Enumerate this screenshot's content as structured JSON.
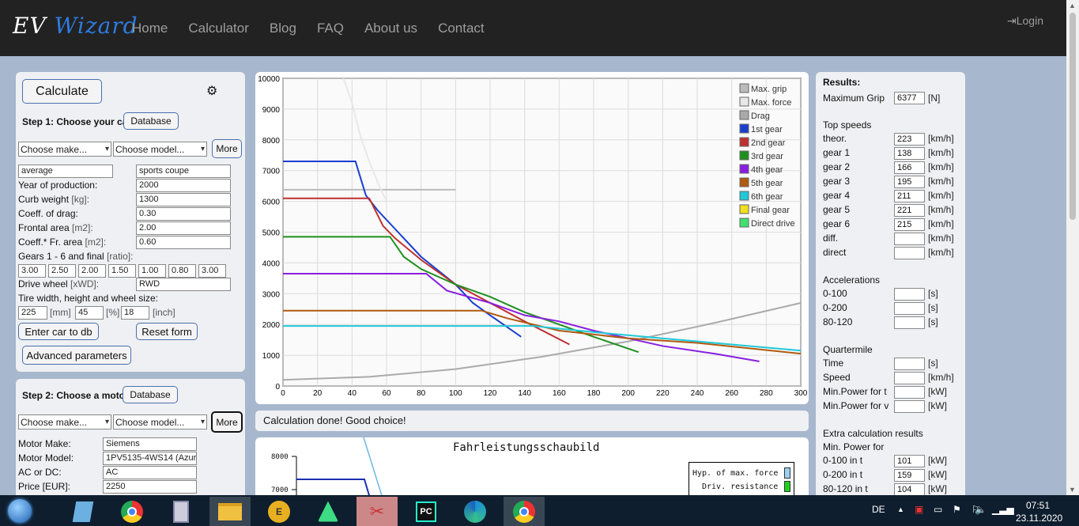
{
  "nav": {
    "brand_a": "EV",
    "brand_b": "Wizard",
    "items": [
      "Home",
      "Calculator",
      "Blog",
      "FAQ",
      "About us",
      "Contact"
    ],
    "login": "Login"
  },
  "car": {
    "calculate": "Calculate",
    "step1": "Step 1: Choose your car!",
    "database": "Database",
    "make_placeholder": "Choose make...",
    "model_placeholder": "Choose model...",
    "more": "More",
    "field_a": "average",
    "field_b": "sports coupe",
    "rows": [
      {
        "label": "Year of production:",
        "unit": "",
        "value": "2000"
      },
      {
        "label": "Curb weight ",
        "unit": "[kg]:",
        "value": "1300"
      },
      {
        "label": "Coeff. of drag:",
        "unit": "",
        "value": "0.30"
      },
      {
        "label": "Frontal area ",
        "unit": "[m2]:",
        "value": "2.00"
      },
      {
        "label": "Coeff.* Fr. area ",
        "unit": "[m2]:",
        "value": "0.60"
      }
    ],
    "gears_label": "Gears 1 - 6 and final ",
    "gears_unit": "[ratio]:",
    "gears": [
      "3.00",
      "2.50",
      "2.00",
      "1.50",
      "1.00",
      "0.80",
      "3.00"
    ],
    "drive_label": "Drive wheel ",
    "drive_unit": "[xWD]:",
    "drive": "RWD",
    "tire_label": "Tire width, height and wheel size:",
    "tire_w": "225",
    "tire_w_unit": "[mm]",
    "tire_h": "45",
    "tire_h_unit": "[%]",
    "tire_r": "18",
    "tire_r_unit": "[inch]",
    "enter_db": "Enter car to db",
    "reset": "Reset form",
    "advanced": "Advanced parameters"
  },
  "motor": {
    "step2": "Step 2: Choose a motor!",
    "database": "Database",
    "make_placeholder": "Choose make...",
    "model_placeholder": "Choose model...",
    "more": "More",
    "rows": [
      {
        "label": "Motor Make:",
        "value": "Siemens"
      },
      {
        "label": "Motor Model:",
        "value": "1PV5135-4WS14 (Azur"
      },
      {
        "label": "AC or DC:",
        "value": "AC"
      },
      {
        "label": "Price [EUR]:",
        "value": "2250"
      }
    ]
  },
  "status": "Calculation done! Good choice!",
  "chart2": {
    "title": "Fahrleistungsschaubild",
    "y1": "8000",
    "y2": "7000",
    "legend1": "Hyp. of max. force",
    "legend2": "Driv. resistance"
  },
  "results": {
    "title": "Results:",
    "max_grip_label": "Maximum Grip",
    "max_grip": "6377",
    "max_grip_unit": "[N]",
    "top_title": "Top speeds",
    "top": [
      {
        "l": "theor.",
        "v": "223"
      },
      {
        "l": "gear 1",
        "v": "138"
      },
      {
        "l": "gear 2",
        "v": "166"
      },
      {
        "l": "gear 3",
        "v": "195"
      },
      {
        "l": "gear 4",
        "v": "211"
      },
      {
        "l": "gear 5",
        "v": "221"
      },
      {
        "l": "gear 6",
        "v": "215"
      },
      {
        "l": "diff.",
        "v": ""
      },
      {
        "l": "direct",
        "v": ""
      }
    ],
    "kmh": "[km/h]",
    "acc_title": "Accelerations",
    "acc": [
      {
        "l": "0-100",
        "v": "",
        "u": "[s]"
      },
      {
        "l": "0-200",
        "v": "",
        "u": "[s]"
      },
      {
        "l": "80-120",
        "v": "",
        "u": "[s]"
      }
    ],
    "qm_title": "Quartermile",
    "qm": [
      {
        "l": "Time",
        "v": "",
        "u": "[s]"
      },
      {
        "l": "Speed",
        "v": "",
        "u": "[km/h]"
      },
      {
        "l": "Min.Power for t",
        "v": "",
        "u": "[kW]"
      },
      {
        "l": "Min.Power for v",
        "v": "",
        "u": "[kW]"
      }
    ],
    "extra_title": "Extra calculation results",
    "minp_title": "Min. Power for",
    "extra": [
      {
        "l": "0-100 in t",
        "v": "101",
        "u": "[kW]"
      },
      {
        "l": "0-200 in t",
        "v": "159",
        "u": "[kW]"
      },
      {
        "l": "80-120 in t",
        "v": "104",
        "u": "[kW]"
      }
    ]
  },
  "taskbar": {
    "lang": "DE",
    "time": "07:51",
    "date": "23.11.2020"
  },
  "chart_data": {
    "type": "line",
    "xlim": [
      0,
      300
    ],
    "ylim": [
      0,
      10000
    ],
    "xticks": [
      0,
      20,
      40,
      60,
      80,
      100,
      120,
      140,
      160,
      180,
      200,
      220,
      240,
      260,
      280,
      300
    ],
    "yticks": [
      0,
      1000,
      2000,
      3000,
      4000,
      5000,
      6000,
      7000,
      8000,
      9000,
      10000
    ],
    "legend_position": "top-right",
    "series": [
      {
        "name": "Max. grip",
        "color": "#bbbbbb",
        "x": [
          0,
          100
        ],
        "y": [
          6377,
          6377
        ]
      },
      {
        "name": "Max. force",
        "color": "#e8e8e8",
        "x": [
          35,
          40,
          45,
          50,
          55,
          60
        ],
        "y": [
          10000,
          9200,
          8100,
          7300,
          6600,
          6000
        ]
      },
      {
        "name": "Drag",
        "color": "#aaaaaa",
        "x": [
          0,
          50,
          100,
          150,
          200,
          250,
          300
        ],
        "y": [
          200,
          300,
          550,
          950,
          1450,
          2050,
          2700
        ]
      },
      {
        "name": "1st gear",
        "color": "#1a3fd0",
        "x": [
          0,
          42,
          48,
          55,
          80,
          100,
          110,
          120,
          138
        ],
        "y": [
          7300,
          7300,
          6200,
          5700,
          4200,
          3300,
          2700,
          2300,
          1600
        ]
      },
      {
        "name": "2nd gear",
        "color": "#c03030",
        "x": [
          0,
          50,
          58,
          65,
          80,
          100,
          120,
          140,
          166
        ],
        "y": [
          6100,
          6100,
          5200,
          4800,
          4100,
          3300,
          2700,
          2100,
          1350
        ]
      },
      {
        "name": "3rd gear",
        "color": "#1f8f1f",
        "x": [
          0,
          62,
          70,
          80,
          100,
          120,
          140,
          160,
          180,
          206
        ],
        "y": [
          4850,
          4850,
          4200,
          3800,
          3300,
          2900,
          2400,
          2000,
          1600,
          1100
        ]
      },
      {
        "name": "4th gear",
        "color": "#8a1ee0",
        "x": [
          0,
          83,
          95,
          120,
          140,
          160,
          180,
          200,
          220,
          250,
          276
        ],
        "y": [
          3650,
          3650,
          3100,
          2700,
          2300,
          2100,
          1800,
          1550,
          1300,
          1050,
          800
        ]
      },
      {
        "name": "5th gear",
        "color": "#b05a10",
        "x": [
          0,
          115,
          130,
          160,
          200,
          240,
          300
        ],
        "y": [
          2450,
          2450,
          2200,
          1800,
          1550,
          1400,
          1050
        ]
      },
      {
        "name": "6th gear",
        "color": "#20c8d8",
        "x": [
          0,
          145,
          180,
          220,
          260,
          300
        ],
        "y": [
          1950,
          1950,
          1750,
          1550,
          1350,
          1150
        ]
      },
      {
        "name": "Final gear",
        "color": "#f0e020",
        "x": [],
        "y": []
      },
      {
        "name": "Direct drive",
        "color": "#40e070",
        "x": [],
        "y": []
      }
    ]
  }
}
